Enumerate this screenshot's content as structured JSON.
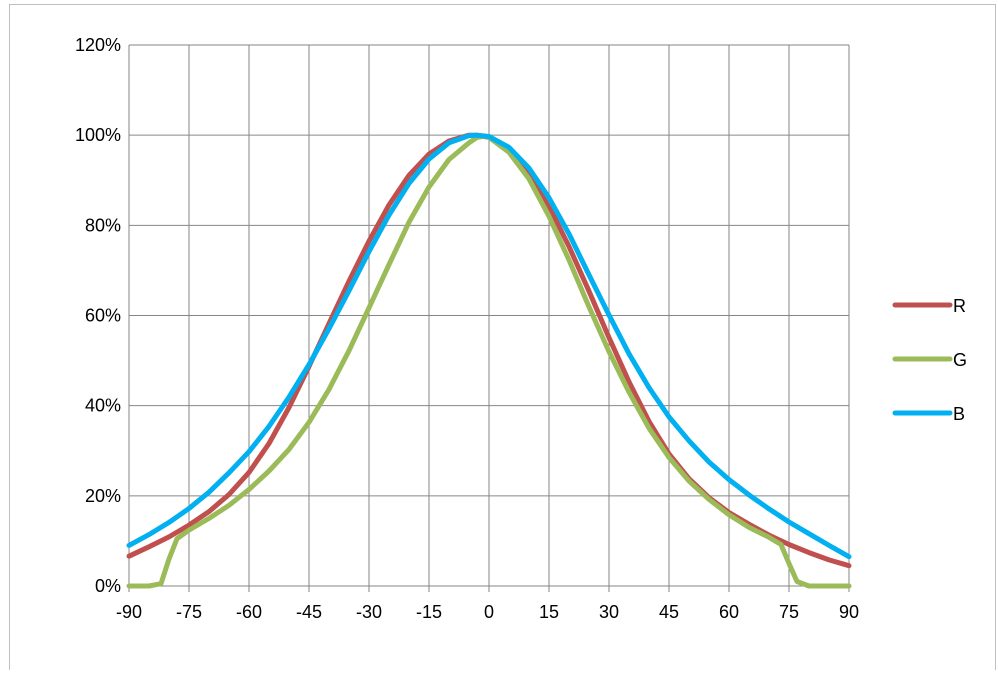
{
  "chart_data": {
    "type": "line",
    "title": "",
    "xlabel": "",
    "ylabel": "",
    "xlim": [
      -90,
      90
    ],
    "ylim": [
      0,
      1.2
    ],
    "x_ticks": [
      "-90",
      "-75",
      "-60",
      "-45",
      "-30",
      "-15",
      "0",
      "15",
      "30",
      "45",
      "60",
      "75",
      "90"
    ],
    "y_ticks": [
      "0%",
      "20%",
      "40%",
      "60%",
      "80%",
      "100%",
      "120%"
    ],
    "grid": true,
    "legend": "right",
    "series": [
      {
        "name": "R",
        "color": "#c0504d",
        "points": [
          [
            -90,
            0.066
          ],
          [
            -85,
            0.087
          ],
          [
            -80,
            0.109
          ],
          [
            -75,
            0.135
          ],
          [
            -70,
            0.165
          ],
          [
            -65,
            0.203
          ],
          [
            -60,
            0.252
          ],
          [
            -55,
            0.316
          ],
          [
            -50,
            0.396
          ],
          [
            -45,
            0.487
          ],
          [
            -40,
            0.582
          ],
          [
            -35,
            0.676
          ],
          [
            -30,
            0.765
          ],
          [
            -25,
            0.845
          ],
          [
            -20,
            0.911
          ],
          [
            -15,
            0.958
          ],
          [
            -10,
            0.987
          ],
          [
            -5,
            1.0
          ],
          [
            -3,
            1.0
          ],
          [
            0,
            0.995
          ],
          [
            5,
            0.968
          ],
          [
            10,
            0.917
          ],
          [
            15,
            0.842
          ],
          [
            20,
            0.753
          ],
          [
            25,
            0.654
          ],
          [
            30,
            0.551
          ],
          [
            35,
            0.453
          ],
          [
            40,
            0.365
          ],
          [
            45,
            0.293
          ],
          [
            50,
            0.238
          ],
          [
            55,
            0.196
          ],
          [
            60,
            0.163
          ],
          [
            65,
            0.137
          ],
          [
            70,
            0.113
          ],
          [
            75,
            0.092
          ],
          [
            80,
            0.074
          ],
          [
            85,
            0.058
          ],
          [
            90,
            0.045
          ]
        ]
      },
      {
        "name": "G",
        "color": "#9bbb59",
        "points": [
          [
            -90,
            0.0
          ],
          [
            -85,
            0.0
          ],
          [
            -82,
            0.005
          ],
          [
            -80,
            0.06
          ],
          [
            -78,
            0.105
          ],
          [
            -75,
            0.124
          ],
          [
            -70,
            0.15
          ],
          [
            -65,
            0.179
          ],
          [
            -60,
            0.214
          ],
          [
            -55,
            0.255
          ],
          [
            -50,
            0.303
          ],
          [
            -45,
            0.363
          ],
          [
            -40,
            0.436
          ],
          [
            -35,
            0.522
          ],
          [
            -30,
            0.617
          ],
          [
            -25,
            0.713
          ],
          [
            -20,
            0.807
          ],
          [
            -15,
            0.885
          ],
          [
            -10,
            0.946
          ],
          [
            -5,
            0.983
          ],
          [
            -3,
            0.995
          ],
          [
            -1,
            0.998
          ],
          [
            0,
            0.995
          ],
          [
            5,
            0.962
          ],
          [
            10,
            0.903
          ],
          [
            15,
            0.82
          ],
          [
            20,
            0.723
          ],
          [
            25,
            0.619
          ],
          [
            30,
            0.52
          ],
          [
            35,
            0.43
          ],
          [
            40,
            0.35
          ],
          [
            45,
            0.285
          ],
          [
            50,
            0.233
          ],
          [
            55,
            0.192
          ],
          [
            60,
            0.158
          ],
          [
            65,
            0.13
          ],
          [
            70,
            0.108
          ],
          [
            73,
            0.092
          ],
          [
            75,
            0.05
          ],
          [
            77,
            0.01
          ],
          [
            80,
            0.0
          ],
          [
            85,
            0.0
          ],
          [
            90,
            0.0
          ]
        ]
      },
      {
        "name": "B",
        "color": "#00b0f0",
        "points": [
          [
            -90,
            0.09
          ],
          [
            -85,
            0.114
          ],
          [
            -80,
            0.141
          ],
          [
            -75,
            0.172
          ],
          [
            -70,
            0.208
          ],
          [
            -65,
            0.251
          ],
          [
            -60,
            0.298
          ],
          [
            -55,
            0.354
          ],
          [
            -50,
            0.419
          ],
          [
            -45,
            0.491
          ],
          [
            -40,
            0.571
          ],
          [
            -35,
            0.655
          ],
          [
            -30,
            0.742
          ],
          [
            -25,
            0.823
          ],
          [
            -20,
            0.893
          ],
          [
            -15,
            0.947
          ],
          [
            -10,
            0.983
          ],
          [
            -5,
            0.999
          ],
          [
            -3,
            1.0
          ],
          [
            0,
            0.997
          ],
          [
            5,
            0.973
          ],
          [
            10,
            0.927
          ],
          [
            15,
            0.861
          ],
          [
            20,
            0.781
          ],
          [
            25,
            0.69
          ],
          [
            30,
            0.601
          ],
          [
            35,
            0.515
          ],
          [
            40,
            0.44
          ],
          [
            45,
            0.375
          ],
          [
            50,
            0.322
          ],
          [
            55,
            0.275
          ],
          [
            60,
            0.236
          ],
          [
            65,
            0.202
          ],
          [
            70,
            0.171
          ],
          [
            75,
            0.142
          ],
          [
            80,
            0.116
          ],
          [
            85,
            0.09
          ],
          [
            90,
            0.065
          ]
        ]
      }
    ]
  }
}
